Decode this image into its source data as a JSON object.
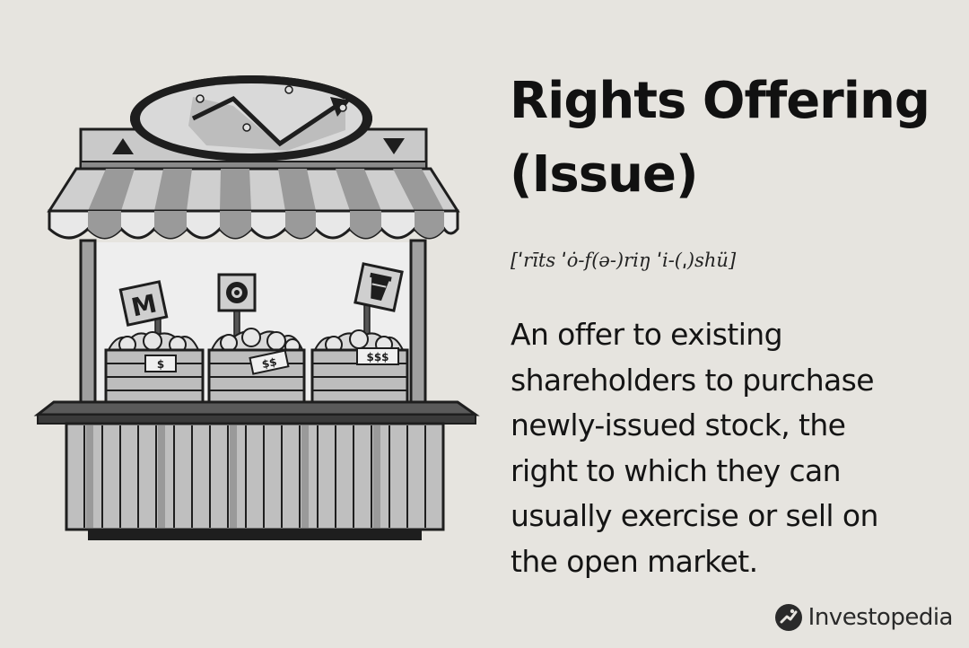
{
  "title": {
    "line1": "Rights Offering",
    "line2": "(Issue)"
  },
  "pronunciation": "[ˈrīts ˈȯ-f(ə-)riŋ ˈi-(ˌ)shü]",
  "definition": {
    "lines": [
      "An offer to existing",
      "shareholders to purchase",
      "newly-issued stock, the",
      "right to which they can",
      "usually exercise or sell on",
      "the open market."
    ]
  },
  "brand": {
    "name": "Investopedia",
    "icon": "investopedia-logo-icon"
  },
  "illustration": {
    "subject": "market-stall-icon",
    "price_tags": [
      "$",
      "$$",
      "$$$"
    ],
    "sign_letters": [
      "M"
    ]
  },
  "colors": {
    "background": "#e6e4df",
    "text": "#141414",
    "ink": "#1e1e1e"
  }
}
